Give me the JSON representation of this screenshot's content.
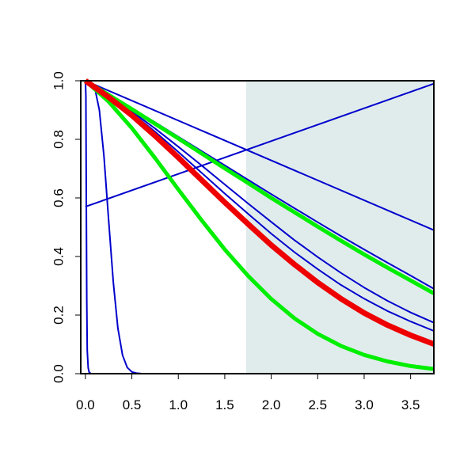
{
  "chart_data": {
    "type": "line",
    "title": "",
    "xlabel": "",
    "ylabel": "",
    "xlim": [
      -0.05,
      3.75
    ],
    "ylim": [
      0.0,
      1.0
    ],
    "grid": false,
    "shaded_region": {
      "x_start": 1.73,
      "x_end": 3.75,
      "color": "#e0ecec"
    },
    "x_ticks": [
      {
        "value": 0.0,
        "label": "0.0"
      },
      {
        "value": 0.5,
        "label": "0.5"
      },
      {
        "value": 1.0,
        "label": "1.0"
      },
      {
        "value": 1.5,
        "label": "1.5"
      },
      {
        "value": 2.0,
        "label": "2.0"
      },
      {
        "value": 2.5,
        "label": "2.5"
      },
      {
        "value": 3.0,
        "label": "3.0"
      },
      {
        "value": 3.5,
        "label": "3.5"
      }
    ],
    "y_ticks": [
      {
        "value": 0.0,
        "label": "0.0"
      },
      {
        "value": 0.2,
        "label": "0.2"
      },
      {
        "value": 0.4,
        "label": "0.4"
      },
      {
        "value": 0.6,
        "label": "0.6"
      },
      {
        "value": 0.8,
        "label": "0.8"
      },
      {
        "value": 1.0,
        "label": "1.0"
      }
    ],
    "series": [
      {
        "color": "#0000cc",
        "width": 2,
        "x": [
          0,
          3.75
        ],
        "y": [
          1.0,
          0.49
        ]
      },
      {
        "color": "#0000cc",
        "width": 2,
        "x": [
          0,
          3.75
        ],
        "y": [
          0.57,
          0.99
        ]
      },
      {
        "color": "#0000cc",
        "width": 2,
        "x": [
          0,
          0.25,
          0.5,
          0.75,
          1.0,
          1.25,
          1.5,
          1.75,
          2.0,
          2.25,
          2.5,
          2.75,
          3.0,
          3.25,
          3.5,
          3.75
        ],
        "y": [
          1.0,
          0.953,
          0.906,
          0.858,
          0.809,
          0.76,
          0.711,
          0.662,
          0.613,
          0.565,
          0.517,
          0.47,
          0.424,
          0.379,
          0.335,
          0.29
        ]
      },
      {
        "color": "#0000cc",
        "width": 2,
        "x": [
          0,
          0.25,
          0.5,
          0.75,
          1.0,
          1.25,
          1.5,
          1.75,
          2.0,
          2.25,
          2.5,
          2.75,
          3.0,
          3.25,
          3.5,
          3.75
        ],
        "y": [
          1.0,
          0.949,
          0.895,
          0.837,
          0.775,
          0.711,
          0.646,
          0.581,
          0.518,
          0.456,
          0.398,
          0.344,
          0.294,
          0.249,
          0.209,
          0.174
        ]
      },
      {
        "color": "#0000cc",
        "width": 2,
        "x": [
          0,
          0.25,
          0.5,
          0.75,
          1.0,
          1.25,
          1.5,
          1.75,
          2.0,
          2.25,
          2.5,
          2.75,
          3.0,
          3.25,
          3.5,
          3.75
        ],
        "y": [
          1.0,
          0.948,
          0.89,
          0.826,
          0.757,
          0.686,
          0.615,
          0.546,
          0.478,
          0.415,
          0.357,
          0.303,
          0.256,
          0.214,
          0.178,
          0.146
        ]
      },
      {
        "color": "#0000cc",
        "width": 2,
        "x": [
          0,
          0.05,
          0.1,
          0.15,
          0.2,
          0.25,
          0.3,
          0.35,
          0.4,
          0.45,
          0.5,
          0.55,
          0.6,
          0.7,
          0.8,
          3.75
        ],
        "y": [
          1.0,
          0.998,
          0.977,
          0.9,
          0.743,
          0.525,
          0.313,
          0.155,
          0.063,
          0.021,
          0.006,
          0.0015,
          0.0003,
          0.0,
          0.0,
          0.0
        ]
      },
      {
        "color": "#0000cc",
        "width": 2,
        "x": [
          0,
          0.005,
          0.01,
          0.015,
          0.02,
          0.03,
          0.04,
          0.06,
          0.1,
          3.75
        ],
        "y": [
          1.0,
          0.95,
          0.6,
          0.25,
          0.08,
          0.02,
          0.005,
          0.0,
          0.0,
          0.0
        ]
      },
      {
        "color": "#00ee00",
        "width": 5,
        "x": [
          0,
          0.25,
          0.5,
          0.75,
          1.0,
          1.25,
          1.5,
          1.75,
          2.0,
          2.25,
          2.5,
          2.75,
          3.0,
          3.25,
          3.5,
          3.75
        ],
        "y": [
          1.0,
          0.952,
          0.903,
          0.853,
          0.803,
          0.752,
          0.701,
          0.651,
          0.6,
          0.551,
          0.502,
          0.454,
          0.407,
          0.362,
          0.318,
          0.274
        ]
      },
      {
        "color": "#00ee00",
        "width": 5,
        "x": [
          0,
          0.25,
          0.5,
          0.75,
          1.0,
          1.25,
          1.5,
          1.75,
          2.0,
          2.25,
          2.5,
          2.75,
          3.0,
          3.25,
          3.5,
          3.75
        ],
        "y": [
          1.0,
          0.929,
          0.838,
          0.736,
          0.629,
          0.524,
          0.424,
          0.334,
          0.255,
          0.189,
          0.136,
          0.095,
          0.064,
          0.042,
          0.026,
          0.016
        ]
      },
      {
        "color": "#ee0000",
        "width": 7,
        "x": [
          0,
          0.25,
          0.5,
          0.75,
          1.0,
          1.25,
          1.5,
          1.75,
          2.0,
          2.25,
          2.5,
          2.75,
          3.0,
          3.25,
          3.5,
          3.75
        ],
        "y": [
          1.0,
          0.944,
          0.882,
          0.812,
          0.738,
          0.661,
          0.585,
          0.511,
          0.439,
          0.373,
          0.311,
          0.256,
          0.207,
          0.166,
          0.131,
          0.101
        ]
      }
    ]
  }
}
